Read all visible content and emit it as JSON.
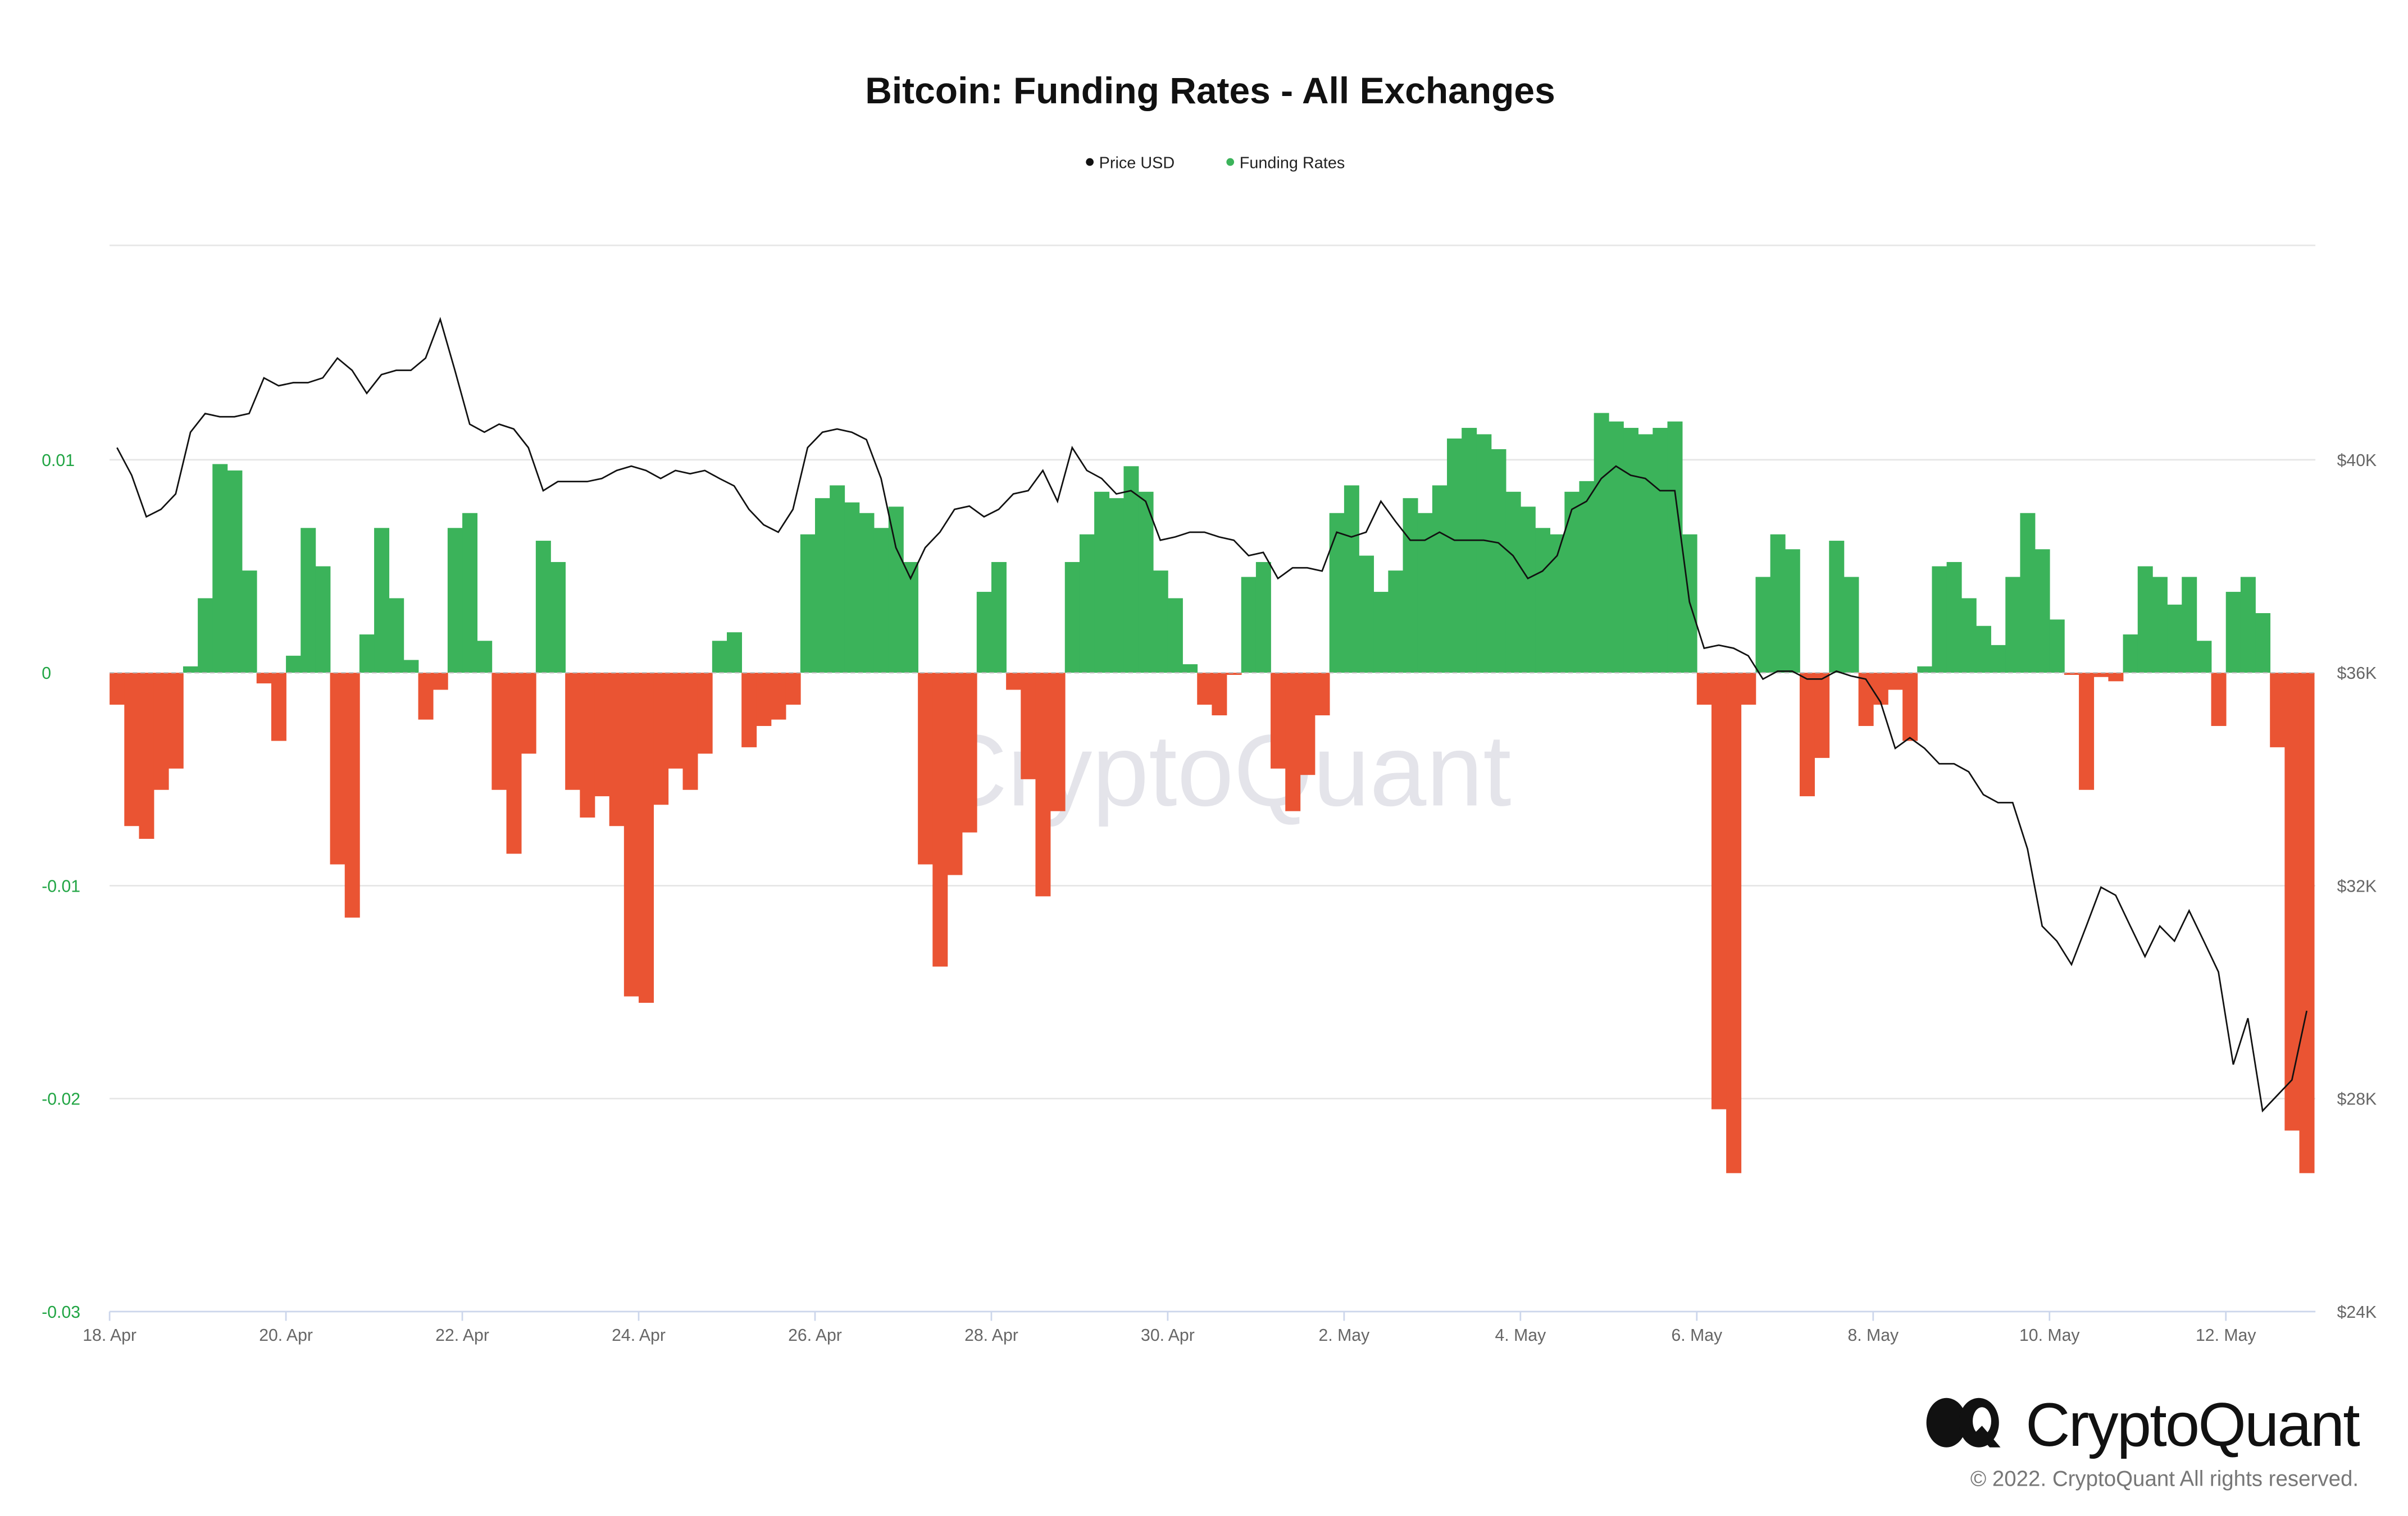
{
  "chart_data": {
    "type": "bar+line",
    "title": "Bitcoin: Funding Rates - All Exchanges",
    "legend": [
      {
        "name": "Price USD",
        "color": "#111111"
      },
      {
        "name": "Funding Rates",
        "color": "#3bb35a"
      }
    ],
    "legend_position": "top-center",
    "colors": {
      "positive": "#3bb35a",
      "negative": "#ea5433",
      "price": "#111111",
      "left_axis": "#21a544"
    },
    "x_start": "18 Apr",
    "interval_hours": 4,
    "x_tick_labels": [
      "18. Apr",
      "20. Apr",
      "22. Apr",
      "24. Apr",
      "26. Apr",
      "28. Apr",
      "30. Apr",
      "2. May",
      "4. May",
      "6. May",
      "8. May",
      "10. May",
      "12. May"
    ],
    "x_tick_day_offsets": [
      0,
      2,
      4,
      6,
      8,
      10,
      12,
      14,
      16,
      18,
      20,
      22,
      24
    ],
    "left_axis": {
      "ylim": [
        -0.03,
        0.02
      ],
      "tick_values": [
        0.01,
        0,
        -0.01,
        -0.02,
        -0.03
      ],
      "tick_labels": [
        "0.01",
        "0",
        "-0.01",
        "-0.02",
        "-0.03"
      ]
    },
    "right_axis": {
      "ylim": [
        24000,
        44000
      ],
      "tick_values": [
        40000,
        36000,
        32000,
        28000,
        24000
      ],
      "tick_labels": [
        "$40K",
        "$36K",
        "$32K",
        "$28K",
        "$24K"
      ]
    },
    "grid": true,
    "funding_rates": [
      -0.0015,
      -0.0072,
      -0.0078,
      -0.0055,
      -0.0045,
      0.0003,
      0.0035,
      0.0098,
      0.0095,
      0.0048,
      -0.0005,
      -0.0032,
      0.0008,
      0.0068,
      0.005,
      -0.009,
      -0.0115,
      0.0018,
      0.0068,
      0.0035,
      0.0006,
      -0.0022,
      -0.0008,
      0.0068,
      0.0075,
      0.0015,
      -0.0055,
      -0.0085,
      -0.0038,
      0.0062,
      0.0052,
      -0.0055,
      -0.0068,
      -0.0058,
      -0.0072,
      -0.0152,
      -0.0155,
      -0.0062,
      -0.0045,
      -0.0055,
      -0.0038,
      0.0015,
      0.0019,
      -0.0035,
      -0.0025,
      -0.0022,
      -0.0015,
      0.0065,
      0.0082,
      0.0088,
      0.008,
      0.0075,
      0.0068,
      0.0078,
      0.0052,
      -0.009,
      -0.0138,
      -0.0095,
      -0.0075,
      0.0038,
      0.0052,
      -0.0008,
      -0.005,
      -0.0105,
      -0.0065,
      0.0052,
      0.0065,
      0.0085,
      0.0082,
      0.0097,
      0.0085,
      0.0048,
      0.0035,
      0.0004,
      -0.0015,
      -0.002,
      -0.0001,
      0.0045,
      0.0052,
      -0.0045,
      -0.0065,
      -0.0048,
      -0.002,
      0.0075,
      0.0088,
      0.0055,
      0.0038,
      0.0048,
      0.0082,
      0.0075,
      0.0088,
      0.011,
      0.0115,
      0.0112,
      0.0105,
      0.0085,
      0.0078,
      0.0068,
      0.0065,
      0.0085,
      0.009,
      0.0122,
      0.0118,
      0.0115,
      0.0112,
      0.0115,
      0.0118,
      0.0065,
      -0.0015,
      -0.0205,
      -0.0235,
      -0.0015,
      0.0045,
      0.0065,
      0.0058,
      -0.0058,
      -0.004,
      0.0062,
      0.0045,
      -0.0025,
      -0.0015,
      -0.0008,
      -0.0032,
      0.0003,
      0.005,
      0.0052,
      0.0035,
      0.0022,
      0.0013,
      0.0045,
      0.0075,
      0.0058,
      0.0025,
      -0.0001,
      -0.0055,
      -0.0002,
      -0.0004,
      0.0018,
      0.005,
      0.0045,
      0.0032,
      0.0045,
      0.0015,
      -0.0025,
      0.0038,
      0.0045,
      0.0028,
      -0.0035,
      -0.0215,
      -0.0235
    ],
    "price_usd": [
      40230,
      39710,
      38930,
      39070,
      39360,
      40520,
      40870,
      40810,
      40810,
      40870,
      41540,
      41390,
      41450,
      41450,
      41540,
      41910,
      41680,
      41250,
      41600,
      41680,
      41680,
      41910,
      42640,
      41680,
      40670,
      40520,
      40670,
      40580,
      40230,
      39420,
      39590,
      39590,
      39590,
      39650,
      39800,
      39880,
      39800,
      39650,
      39800,
      39740,
      39800,
      39650,
      39510,
      39070,
      38780,
      38640,
      39070,
      40230,
      40520,
      40580,
      40520,
      40380,
      39650,
      38350,
      37770,
      38350,
      38640,
      39070,
      39130,
      38930,
      39070,
      39360,
      39420,
      39800,
      39220,
      40230,
      39800,
      39650,
      39360,
      39420,
      39220,
      38490,
      38550,
      38640,
      38640,
      38550,
      38490,
      38200,
      38260,
      37770,
      37970,
      37970,
      37910,
      38640,
      38550,
      38640,
      39220,
      38840,
      38490,
      38490,
      38640,
      38490,
      38490,
      38490,
      38440,
      38200,
      37770,
      37910,
      38200,
      39070,
      39220,
      39650,
      39880,
      39710,
      39650,
      39420,
      39420,
      37330,
      36460,
      36520,
      36460,
      36320,
      35880,
      36030,
      36030,
      35880,
      35880,
      36030,
      35940,
      35880,
      35450,
      34580,
      34780,
      34580,
      34290,
      34290,
      34140,
      33710,
      33560,
      33560,
      32690,
      31240,
      30960,
      30520,
      31240,
      31970,
      31820,
      31240,
      30670,
      31240,
      30960,
      31530,
      30960,
      30380,
      28640,
      29510,
      27770,
      28060,
      28350,
      29650
    ]
  },
  "watermark": "CryptoQuant",
  "footer": {
    "brand": "CryptoQuant",
    "copyright": "© 2022. CryptoQuant All rights reserved."
  }
}
